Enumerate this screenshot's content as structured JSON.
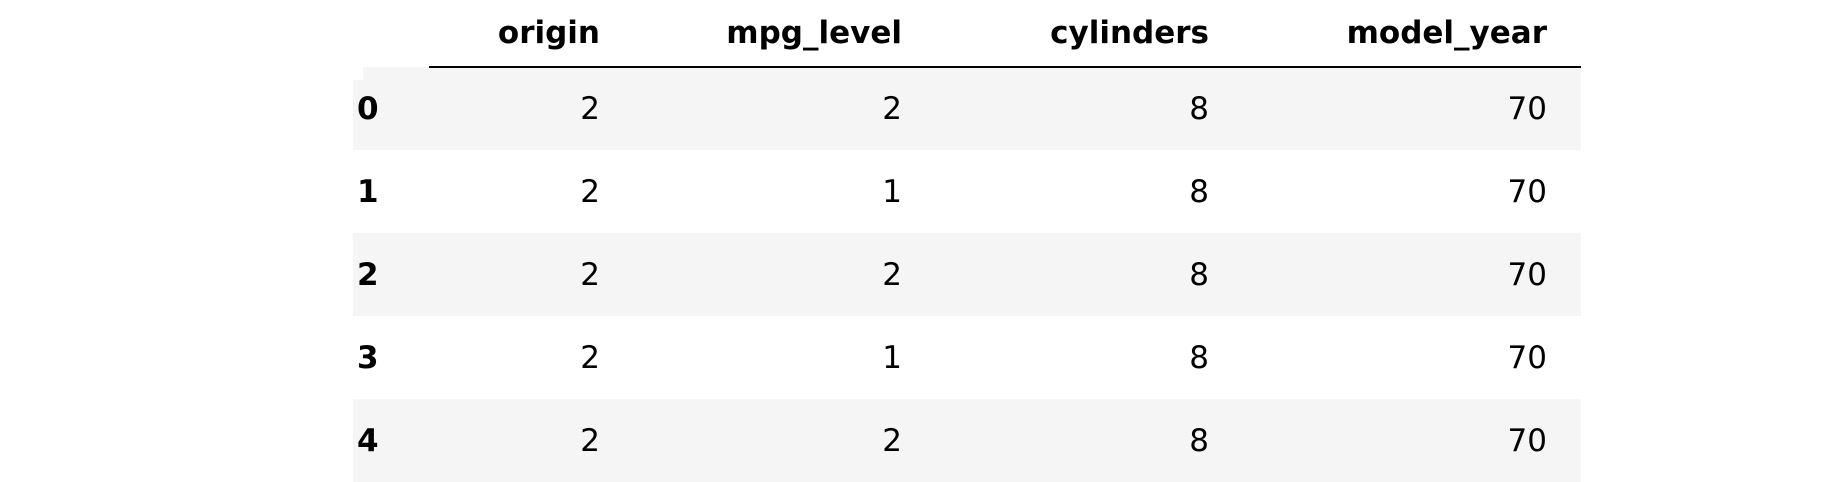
{
  "table": {
    "index_header": "",
    "columns": [
      "origin",
      "mpg_level",
      "cylinders",
      "model_year"
    ],
    "rows": [
      {
        "index": "0",
        "cells": [
          "2",
          "2",
          "8",
          "70"
        ]
      },
      {
        "index": "1",
        "cells": [
          "2",
          "1",
          "8",
          "70"
        ]
      },
      {
        "index": "2",
        "cells": [
          "2",
          "2",
          "8",
          "70"
        ]
      },
      {
        "index": "3",
        "cells": [
          "2",
          "1",
          "8",
          "70"
        ]
      },
      {
        "index": "4",
        "cells": [
          "2",
          "2",
          "8",
          "70"
        ]
      }
    ]
  },
  "colors": {
    "text": "#000000",
    "stripe": "#f5f5f5",
    "background": "#ffffff"
  }
}
